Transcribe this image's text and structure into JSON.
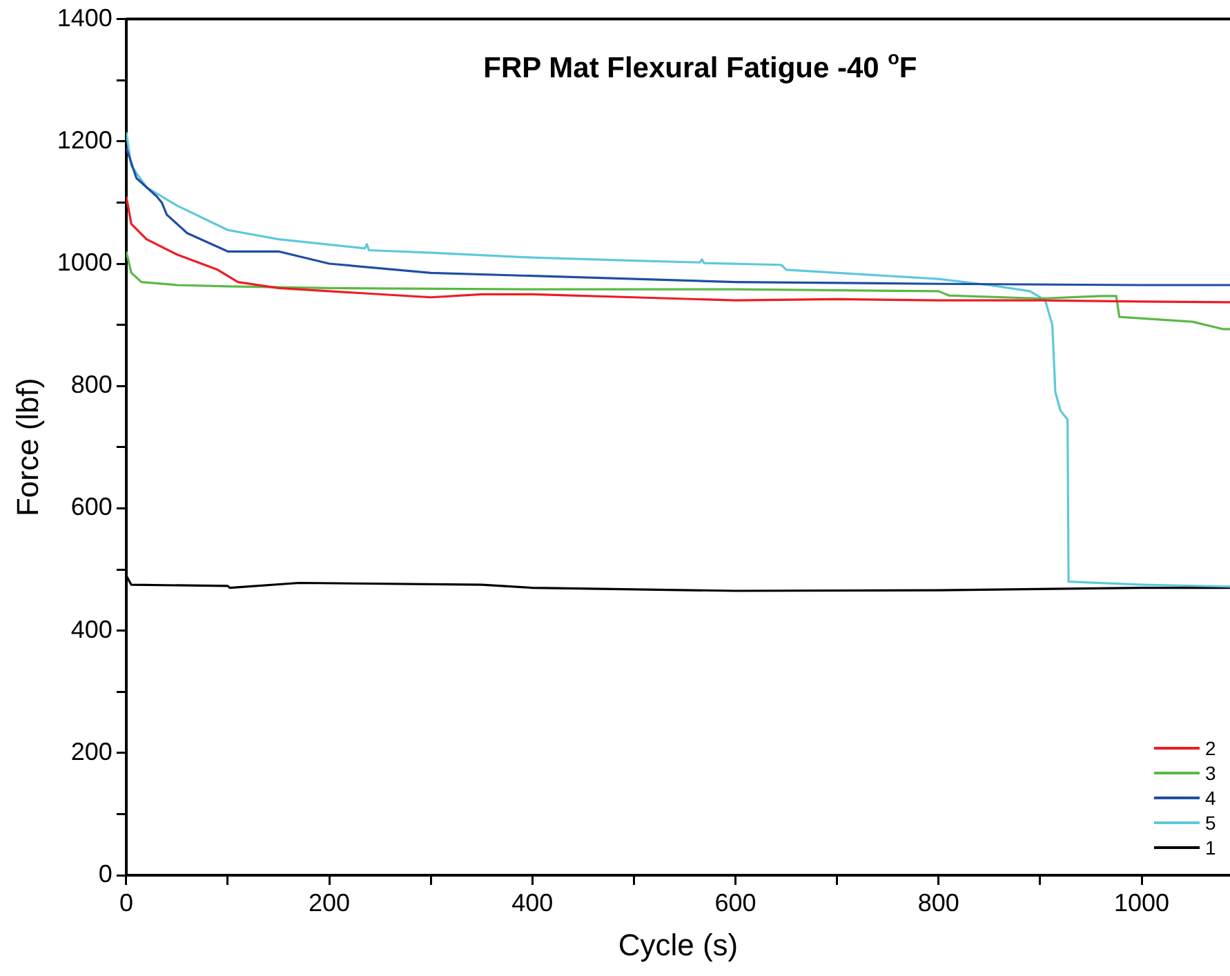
{
  "chart_data": {
    "type": "line",
    "title": "FRP Mat Flexural Fatigue -40 $^{o}$F",
    "xlabel": "Cycle (s)",
    "ylabel": "Force (lbf)",
    "xlim": [
      0,
      1087
    ],
    "xticks": [
      0,
      {
        "value": 100,
        "label": null
      },
      200,
      {
        "value": 300,
        "label": null
      },
      400,
      {
        "value": 500,
        "label": null
      },
      600,
      {
        "value": 700,
        "label": null
      },
      800,
      {
        "value": 900,
        "label": null
      },
      1000
    ],
    "ylim": [
      0,
      1400
    ],
    "yticks": [
      0,
      {
        "value": 100,
        "label": null
      },
      200,
      {
        "value": 300,
        "label": null
      },
      400,
      {
        "value": 500,
        "label": null
      },
      600,
      {
        "value": 700,
        "label": null
      },
      800,
      {
        "value": 900,
        "label": null
      },
      1000,
      {
        "value": 1100,
        "label": null
      },
      1200,
      {
        "value": 1300,
        "label": null
      },
      1400
    ],
    "grid": false,
    "legend": "bottom right",
    "marker": "none",
    "line_style": "solid",
    "series": [
      {
        "name": "2",
        "color": "#ee1c25",
        "x": [
          0,
          5,
          20,
          50,
          90,
          110,
          150,
          200,
          300,
          350,
          400,
          500,
          600,
          700,
          800,
          900,
          1000,
          1087
        ],
        "values": [
          1110,
          1065,
          1040,
          1015,
          990,
          970,
          960,
          955,
          945,
          950,
          950,
          945,
          940,
          942,
          940,
          940,
          938,
          937
        ]
      },
      {
        "name": "3",
        "color": "#5ab946",
        "x": [
          0,
          5,
          15,
          50,
          100,
          200,
          400,
          600,
          800,
          810,
          900,
          960,
          975,
          978,
          1050,
          1080,
          1087
        ],
        "values": [
          1020,
          985,
          970,
          965,
          963,
          960,
          958,
          958,
          955,
          948,
          943,
          947,
          947,
          913,
          905,
          893,
          893
        ]
      },
      {
        "name": "4",
        "color": "#1f4ea3",
        "x": [
          0,
          10,
          30,
          35,
          40,
          60,
          100,
          150,
          200,
          300,
          400,
          600,
          800,
          1000,
          1087
        ],
        "values": [
          1190,
          1140,
          1110,
          1100,
          1080,
          1050,
          1020,
          1020,
          1000,
          985,
          980,
          970,
          967,
          965,
          965
        ]
      },
      {
        "name": "5",
        "color": "#5ec8dc",
        "x": [
          0,
          5,
          20,
          50,
          100,
          150,
          235,
          237,
          239,
          300,
          400,
          500,
          565,
          567,
          569,
          645,
          650,
          800,
          850,
          890,
          905,
          912,
          915,
          920,
          927,
          928,
          1000,
          1087
        ],
        "values": [
          1215,
          1160,
          1125,
          1095,
          1055,
          1040,
          1025,
          1032,
          1022,
          1018,
          1010,
          1005,
          1002,
          1007,
          1001,
          998,
          990,
          975,
          965,
          955,
          940,
          900,
          790,
          760,
          745,
          480,
          475,
          472
        ]
      },
      {
        "name": "1",
        "color": "#000000",
        "x": [
          0,
          5,
          100,
          102,
          170,
          350,
          400,
          600,
          800,
          1000,
          1087
        ],
        "values": [
          490,
          475,
          473,
          470,
          478,
          475,
          470,
          465,
          466,
          470,
          470
        ]
      }
    ]
  }
}
